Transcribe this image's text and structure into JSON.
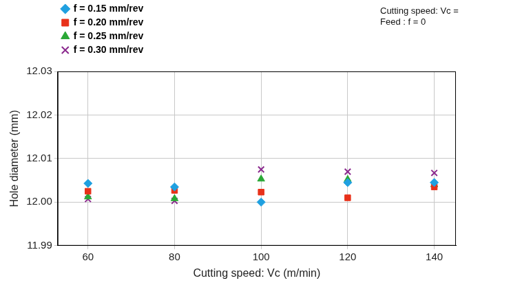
{
  "chart_data": {
    "type": "scatter",
    "x_label": "Cutting speed: Vc (m/min)",
    "y_label": "Hole diameter (mm)",
    "annotations": [
      "Cutting speed: Vc =",
      "Feed : f = 0"
    ],
    "x": [
      60,
      80,
      100,
      120,
      140
    ],
    "xlim": [
      53,
      145
    ],
    "xticks": [
      60,
      80,
      100,
      120,
      140
    ],
    "ylim": [
      11.99,
      12.03
    ],
    "yticks": [
      11.99,
      {
        "value": 12,
        "label": "12.00"
      },
      12.01,
      12.02,
      12.03
    ],
    "grid": true,
    "legend": "upper left",
    "series": [
      {
        "name": "f = 0.15 mm/rev",
        "color": "#1fa0e0",
        "marker": "diamond",
        "values": [
          12.0043,
          12.0035,
          12.0,
          12.0045,
          12.0045
        ]
      },
      {
        "name": "f = 0.20 mm/rev",
        "color": "#e8311a",
        "marker": "square",
        "values": [
          12.0025,
          12.0027,
          12.0023,
          12.001,
          12.0035
        ]
      },
      {
        "name": "f = 0.25 mm/rev",
        "color": "#2aa836",
        "marker": "triangle",
        "values": [
          12.0012,
          12.0008,
          12.0053,
          12.0052,
          12.004
        ]
      },
      {
        "name": "f = 0.30 mm/rev",
        "color": "#8b2a8e",
        "marker": "cross",
        "values": [
          12.0007,
          12.0003,
          12.0075,
          12.007,
          12.0067
        ]
      }
    ]
  }
}
